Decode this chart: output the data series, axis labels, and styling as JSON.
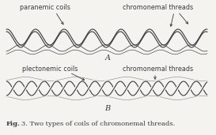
{
  "title_bold": "Fig.",
  "title_rest": "   3. Two types of coils of chromonemal threads.",
  "label_A": "A",
  "label_B": "B",
  "label_paranemic": "paranemic coils",
  "label_plectonemic": "plectonemic coils",
  "label_chrom_A": "chromonemal threads",
  "label_chrom_B": "chromonemal threads",
  "bg_color": "#f5f3ef",
  "line_color": "#3a3a3a",
  "fig_width": 2.73,
  "fig_height": 1.71,
  "dpi": 100
}
